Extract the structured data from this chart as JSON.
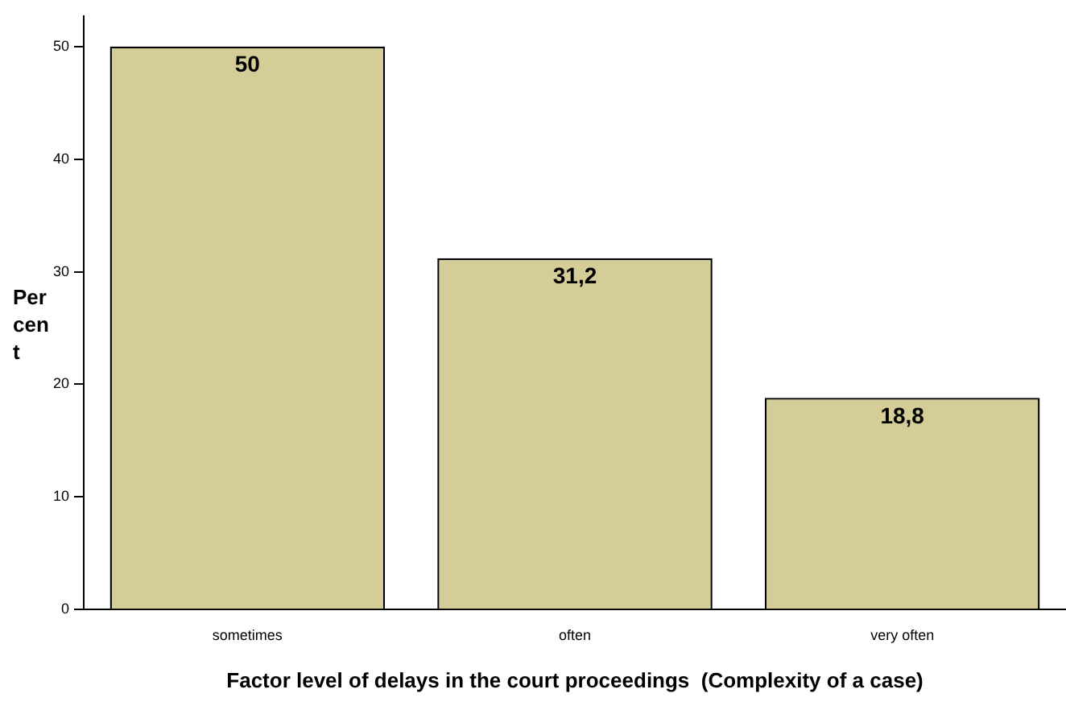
{
  "chart_data": {
    "type": "bar",
    "xlabel": "Factor level of delays in the court proceedings  (Complexity of a case)",
    "ylabel": "Percent",
    "categories": [
      "sometimes",
      "often",
      "very often"
    ],
    "values": [
      50,
      31.2,
      18.8
    ],
    "value_labels": [
      "50",
      "31,2",
      "18,8"
    ],
    "color": "#d4cd98",
    "ylim": [
      0,
      52.7
    ],
    "yticks": [
      0,
      10,
      20,
      30,
      40,
      50
    ],
    "grid": false,
    "legend": false
  }
}
